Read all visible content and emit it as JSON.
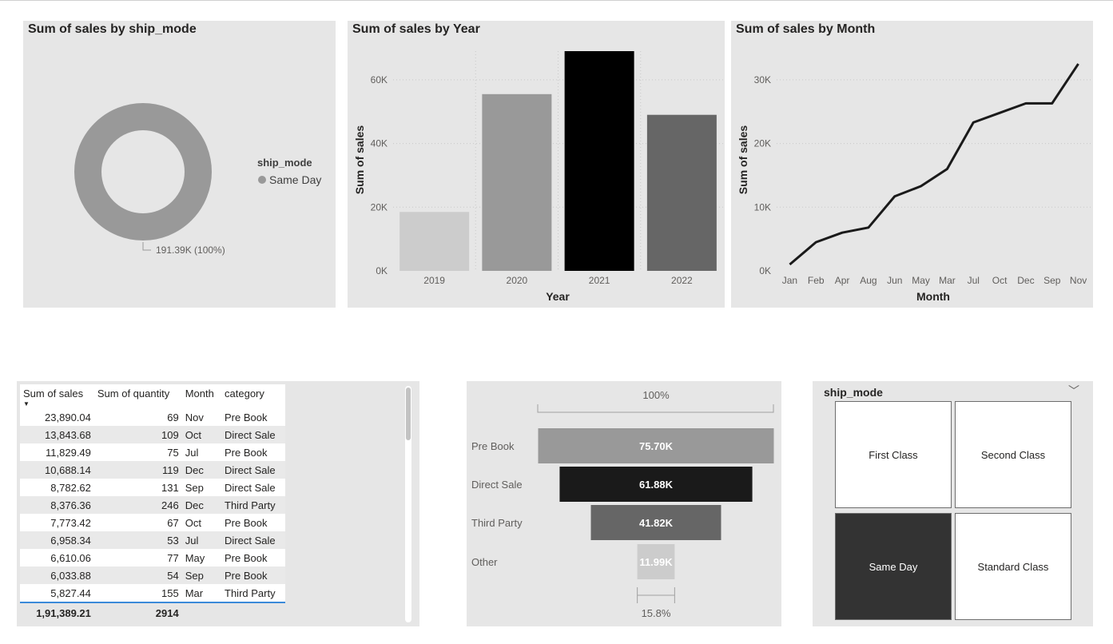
{
  "donut": {
    "title": "Sum of sales by ship_mode",
    "legend_title": "ship_mode",
    "data_label": "191.39K (100%)"
  },
  "bar": {
    "title": "Sum of sales by Year",
    "xlabel": "Year",
    "ylabel": "Sum of sales",
    "yticks": [
      "0K",
      "20K",
      "40K",
      "60K"
    ]
  },
  "line": {
    "title": "Sum of sales by Month",
    "xlabel": "Month",
    "ylabel": "Sum of sales",
    "yticks": [
      "0K",
      "10K",
      "20K",
      "30K"
    ]
  },
  "table": {
    "headers": [
      "Sum of sales",
      "Sum of quantity",
      "Month",
      "category"
    ],
    "rows": [
      [
        "23,890.04",
        "69",
        "Nov",
        "Pre Book"
      ],
      [
        "13,843.68",
        "109",
        "Oct",
        "Direct Sale"
      ],
      [
        "11,829.49",
        "75",
        "Jul",
        "Pre Book"
      ],
      [
        "10,688.14",
        "119",
        "Dec",
        "Direct Sale"
      ],
      [
        "8,782.62",
        "131",
        "Sep",
        "Direct Sale"
      ],
      [
        "8,376.36",
        "246",
        "Dec",
        "Third Party"
      ],
      [
        "7,773.42",
        "67",
        "Oct",
        "Pre Book"
      ],
      [
        "6,958.34",
        "53",
        "Jul",
        "Direct Sale"
      ],
      [
        "6,610.06",
        "77",
        "May",
        "Pre Book"
      ],
      [
        "6,033.88",
        "54",
        "Sep",
        "Pre Book"
      ],
      [
        "5,827.44",
        "155",
        "Mar",
        "Third Party"
      ]
    ],
    "total": [
      "1,91,389.21",
      "2914",
      "",
      ""
    ]
  },
  "funnel": {
    "top_label": "100%",
    "bottom_label": "15.8%"
  },
  "slicer": {
    "title": "ship_mode",
    "options": [
      "First Class",
      "Second Class",
      "Same Day",
      "Standard Class"
    ],
    "selected": "Same Day"
  },
  "chart_data": [
    {
      "type": "pie",
      "donut": true,
      "title": "Sum of sales by ship_mode",
      "legend_title": "ship_mode",
      "legend_position": "right",
      "categories": [
        "Same Day"
      ],
      "values": [
        191389.21
      ],
      "colors": [
        "#999999"
      ]
    },
    {
      "type": "bar",
      "title": "Sum of sales by Year",
      "xlabel": "Year",
      "ylabel": "Sum of sales",
      "categories": [
        "2019",
        "2020",
        "2021",
        "2022"
      ],
      "values": [
        18500,
        55500,
        69000,
        49000
      ],
      "colors": [
        "#cccccc",
        "#999999",
        "#000000",
        "#666666"
      ],
      "ylim": [
        0,
        69000
      ],
      "grid": true
    },
    {
      "type": "line",
      "title": "Sum of sales by Month",
      "xlabel": "Month",
      "ylabel": "Sum of sales",
      "categories": [
        "Jan",
        "Feb",
        "Apr",
        "Aug",
        "Jun",
        "May",
        "Mar",
        "Jul",
        "Oct",
        "Dec",
        "Sep",
        "Nov"
      ],
      "values": [
        1000,
        4500,
        6000,
        6800,
        11700,
        13300,
        16000,
        23300,
        24800,
        26300,
        26300,
        32500
      ],
      "color": "#1a1a1a",
      "ylim": [
        0,
        34500
      ],
      "grid": true
    },
    {
      "type": "bar",
      "orientation": "funnel",
      "categories": [
        "Pre Book",
        "Direct Sale",
        "Third Party",
        "Other"
      ],
      "values": [
        75700,
        61880,
        41820,
        11990
      ],
      "value_labels": [
        "75.70K",
        "61.88K",
        "41.82K",
        "11.99K"
      ],
      "colors": [
        "#999999",
        "#1a1a1a",
        "#666666",
        "#cccccc"
      ]
    }
  ]
}
